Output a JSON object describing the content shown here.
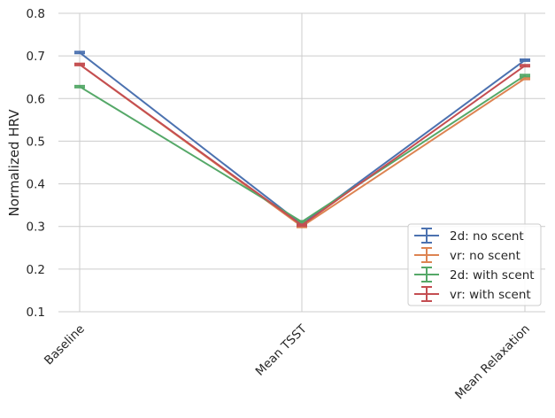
{
  "chart_data": {
    "type": "line",
    "title": "",
    "xlabel": "",
    "ylabel": "Normalized HRV",
    "categories": [
      "Baseline",
      "Mean TSST",
      "Mean Relaxation"
    ],
    "ylim": [
      0.1,
      0.8
    ],
    "yticks": [
      "0.1",
      "0.2",
      "0.3",
      "0.4",
      "0.5",
      "0.6",
      "0.7",
      "0.8"
    ],
    "grid": true,
    "legend_position": "bottom-right",
    "series": [
      {
        "name": "2d: no scent",
        "color": "#4c72b0",
        "values": [
          0.708,
          0.305,
          0.69
        ],
        "err": [
          0.002,
          0.002,
          0.002
        ]
      },
      {
        "name": "vr: no scent",
        "color": "#dd8452",
        "values": [
          0.68,
          0.3,
          0.647
        ],
        "err": [
          0.002,
          0.002,
          0.002
        ]
      },
      {
        "name": "2d: with scent",
        "color": "#55a868",
        "values": [
          0.628,
          0.311,
          0.654
        ],
        "err": [
          0.002,
          0.002,
          0.002
        ]
      },
      {
        "name": "vr: with scent",
        "color": "#c44e52",
        "values": [
          0.68,
          0.303,
          0.677
        ],
        "err": [
          0.002,
          0.002,
          0.002
        ]
      }
    ]
  }
}
